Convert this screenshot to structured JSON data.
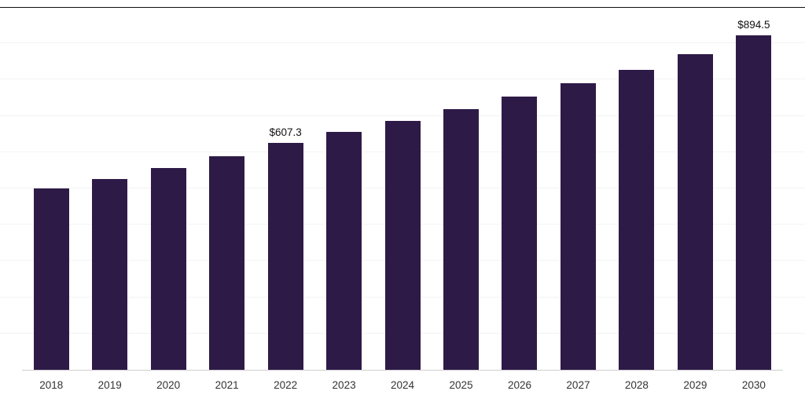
{
  "chart": {
    "bar_color": "#2E1A47",
    "background_color": "#ffffff",
    "top_border_color": "#161616",
    "axis_line_color": "#cfcfcf",
    "gridline_color": "#f3f3f3"
  },
  "chart_data": {
    "type": "bar",
    "title": "",
    "xlabel": "",
    "ylabel": "",
    "categories": [
      "2018",
      "2019",
      "2020",
      "2021",
      "2022",
      "2023",
      "2024",
      "2025",
      "2026",
      "2027",
      "2028",
      "2029",
      "2030"
    ],
    "values": [
      485,
      510,
      540,
      572,
      607.3,
      636,
      666,
      698,
      731,
      766,
      803,
      845,
      894.5
    ],
    "data_labels": {
      "2022": "$607.3",
      "2030": "$894.5"
    },
    "ylim": [
      0,
      970
    ],
    "grid": "horizontal-faint",
    "legend": "none"
  }
}
